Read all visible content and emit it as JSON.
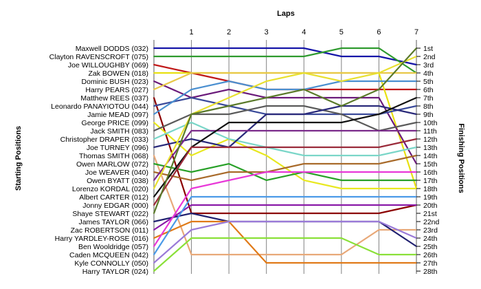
{
  "chart_data": {
    "type": "line",
    "title": "Laps",
    "ylabel_left": "Starting Positions",
    "ylabel_right": "Finishing Positions",
    "x": [
      0,
      1,
      2,
      3,
      4,
      5,
      6,
      7
    ],
    "x_tick_labels": [
      "",
      "1",
      "2",
      "3",
      "4",
      "5",
      "6",
      "7"
    ],
    "y_range": [
      1,
      28
    ],
    "y_inverted": true,
    "finish_labels": [
      "1st",
      "2nd",
      "3rd",
      "4th",
      "5th",
      "6th",
      "7th",
      "8th",
      "9th",
      "10th",
      "11th",
      "12th",
      "13th",
      "14th",
      "15th",
      "16th",
      "17th",
      "18th",
      "19th",
      "20th",
      "21st",
      "22nd",
      "23rd",
      "24th",
      "25th",
      "26th",
      "27th",
      "28th"
    ],
    "grid": "vertical",
    "series": [
      {
        "name": "Maxwell DODDS (032)",
        "color": "#1515a8",
        "values": [
          1,
          1,
          1,
          1,
          1,
          2,
          2,
          3
        ]
      },
      {
        "name": "Clayton RAVENSCROFT (075)",
        "color": "#2e9a2e",
        "values": [
          2,
          2,
          2,
          2,
          2,
          1,
          1,
          4
        ]
      },
      {
        "name": "Joe WILLOUGHBY (069)",
        "color": "#c01818",
        "values": [
          3,
          4,
          5,
          6,
          6,
          6,
          6,
          6
        ]
      },
      {
        "name": "Zak BOWEN (018)",
        "color": "#e8e010",
        "values": [
          4,
          4,
          4,
          4,
          4,
          4,
          4,
          18
        ]
      },
      {
        "name": "Dominic BUSH (023)",
        "color": "#6a1a7a",
        "values": [
          5,
          7,
          6,
          7,
          7,
          7,
          7,
          15
        ]
      },
      {
        "name": "Harry PEARS (027)",
        "color": "#e8c848",
        "values": [
          6,
          4,
          4,
          4,
          4,
          4,
          4,
          4
        ]
      },
      {
        "name": "Matthew REES (037)",
        "color": "#8b0000",
        "values": [
          7,
          21,
          21,
          21,
          21,
          21,
          21,
          20
        ]
      },
      {
        "name": "Leonardo PANAYIOTOU (044)",
        "color": "#3a4a9a",
        "values": [
          8,
          7,
          8,
          9,
          9,
          9,
          9,
          8
        ]
      },
      {
        "name": "Jamie MEAD (097)",
        "color": "#4a8fd0",
        "values": [
          9,
          6,
          5,
          6,
          6,
          5,
          5,
          5
        ]
      },
      {
        "name": "George PRICE (099)",
        "color": "#e8e820",
        "values": [
          10,
          14,
          12,
          14,
          17,
          18,
          18,
          18
        ]
      },
      {
        "name": "Jack SMITH (083)",
        "color": "#5a5a5a",
        "values": [
          11,
          9,
          9,
          8,
          8,
          9,
          11,
          10
        ]
      },
      {
        "name": "Christopher DRAPER (033)",
        "color": "#7ad6c8",
        "values": [
          12,
          10,
          12,
          13,
          14,
          14,
          14,
          13
        ]
      },
      {
        "name": "Joe TURNEY (096)",
        "color": "#2a2a7a",
        "values": [
          13,
          12,
          13,
          9,
          9,
          8,
          8,
          9
        ]
      },
      {
        "name": "Thomas SMITH (068)",
        "color": "#e8a878",
        "values": [
          14,
          26,
          26,
          26,
          26,
          26,
          23,
          23
        ]
      },
      {
        "name": "Owen MARLOW (072)",
        "color": "#28a028",
        "values": [
          15,
          16,
          15,
          17,
          16,
          17,
          17,
          17
        ]
      },
      {
        "name": "Joe WEAVER (040)",
        "color": "#a86a2a",
        "values": [
          16,
          17,
          16,
          16,
          15,
          15,
          15,
          14
        ]
      },
      {
        "name": "Owen BYATT (038)",
        "color": "#7a2a8a",
        "values": [
          17,
          11,
          11,
          11,
          11,
          11,
          11,
          11
        ]
      },
      {
        "name": "Lorenzo KORDAL (020)",
        "color": "#e8e030",
        "values": [
          18,
          9,
          7,
          5,
          4,
          5,
          4,
          2
        ]
      },
      {
        "name": "Albert CARTER (012)",
        "color": "#101010",
        "values": [
          19,
          13,
          10,
          10,
          10,
          10,
          9,
          7
        ]
      },
      {
        "name": "Jonny EDGAR (000)",
        "color": "#9a2a3a",
        "values": [
          20,
          13,
          13,
          13,
          13,
          13,
          13,
          12
        ]
      },
      {
        "name": "Shaye STEWART (022)",
        "color": "#5a7a2a",
        "values": [
          21,
          9,
          8,
          7,
          6,
          8,
          6,
          1
        ]
      },
      {
        "name": "James TAYLOR (066)",
        "color": "#202070",
        "values": [
          22,
          21,
          22,
          22,
          22,
          22,
          22,
          25
        ]
      },
      {
        "name": "Zac ROBERTSON (011)",
        "color": "#8a1aa8",
        "values": [
          23,
          20,
          20,
          20,
          20,
          20,
          20,
          20
        ]
      },
      {
        "name": "Harry YARDLEY-ROSE (016)",
        "color": "#e07a18",
        "values": [
          24,
          22,
          22,
          27,
          27,
          27,
          27,
          27
        ]
      },
      {
        "name": "Ben Wooldridge (057)",
        "color": "#e838d8",
        "values": [
          25,
          18,
          17,
          16,
          16,
          16,
          16,
          16
        ]
      },
      {
        "name": "Caden MCQUEEN (042)",
        "color": "#4a9ae8",
        "values": [
          26,
          19,
          19,
          19,
          19,
          19,
          19,
          19
        ]
      },
      {
        "name": "Kyle CONNOLLY (050)",
        "color": "#9a7ad8",
        "values": [
          27,
          23,
          22,
          22,
          22,
          22,
          22,
          24
        ]
      },
      {
        "name": "Harry TAYLOR (024)",
        "color": "#8ae038",
        "values": [
          28,
          24,
          24,
          24,
          24,
          24,
          26,
          26
        ]
      }
    ]
  }
}
